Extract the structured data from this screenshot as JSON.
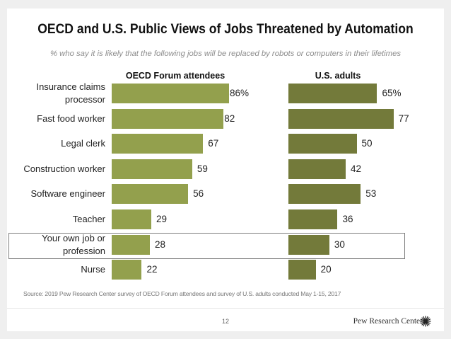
{
  "slide": {
    "title": "OECD and U.S. Public Views of Jobs Threatened by Automation",
    "subtitle": "% who say it is likely that the following jobs will be replaced by robots or computers in their lifetimes",
    "source": "Source: 2019 Pew Research Center survey of OECD Forum attendees and survey of U.S. adults conducted May 1-15, 2017",
    "page_number": "12",
    "brand": "Pew Research Center",
    "brand_icon": "pew-sunburst-icon",
    "highlighted_row": "Your own job or profession"
  },
  "colors": {
    "oecd_bar": "#93a04d",
    "us_bar": "#737a3a",
    "highlight_border": "#7d7d7d"
  },
  "chart_data": {
    "type": "bar",
    "orientation": "horizontal",
    "title": "OECD and U.S. Public Views of Jobs Threatened by Automation",
    "subtitle": "% who say it is likely that the following jobs will be replaced by robots or computers in their lifetimes",
    "xlabel": "",
    "ylabel": "",
    "xlim": [
      0,
      100
    ],
    "grid": false,
    "categories": [
      "Insurance claims processor",
      "Fast food worker",
      "Legal clerk",
      "Construction worker",
      "Software engineer",
      "Teacher",
      "Your own job or profession",
      "Nurse"
    ],
    "category_label_lines": [
      [
        "Insurance claims",
        "processor"
      ],
      [
        "Fast food worker"
      ],
      [
        "Legal clerk"
      ],
      [
        "Construction worker"
      ],
      [
        "Software engineer"
      ],
      [
        "Teacher"
      ],
      [
        "Your own job or",
        "profession"
      ],
      [
        "Nurse"
      ]
    ],
    "series": [
      {
        "name": "OECD Forum attendees",
        "values": [
          86,
          82,
          67,
          59,
          56,
          29,
          28,
          22
        ],
        "labels": [
          "86%",
          "82",
          "67",
          "59",
          "56",
          "29",
          "28",
          "22"
        ]
      },
      {
        "name": "U.S. adults",
        "values": [
          65,
          77,
          50,
          42,
          53,
          36,
          30,
          20
        ],
        "labels": [
          "65%",
          "77",
          "50",
          "42",
          "53",
          "36",
          "30",
          "20"
        ]
      }
    ]
  }
}
